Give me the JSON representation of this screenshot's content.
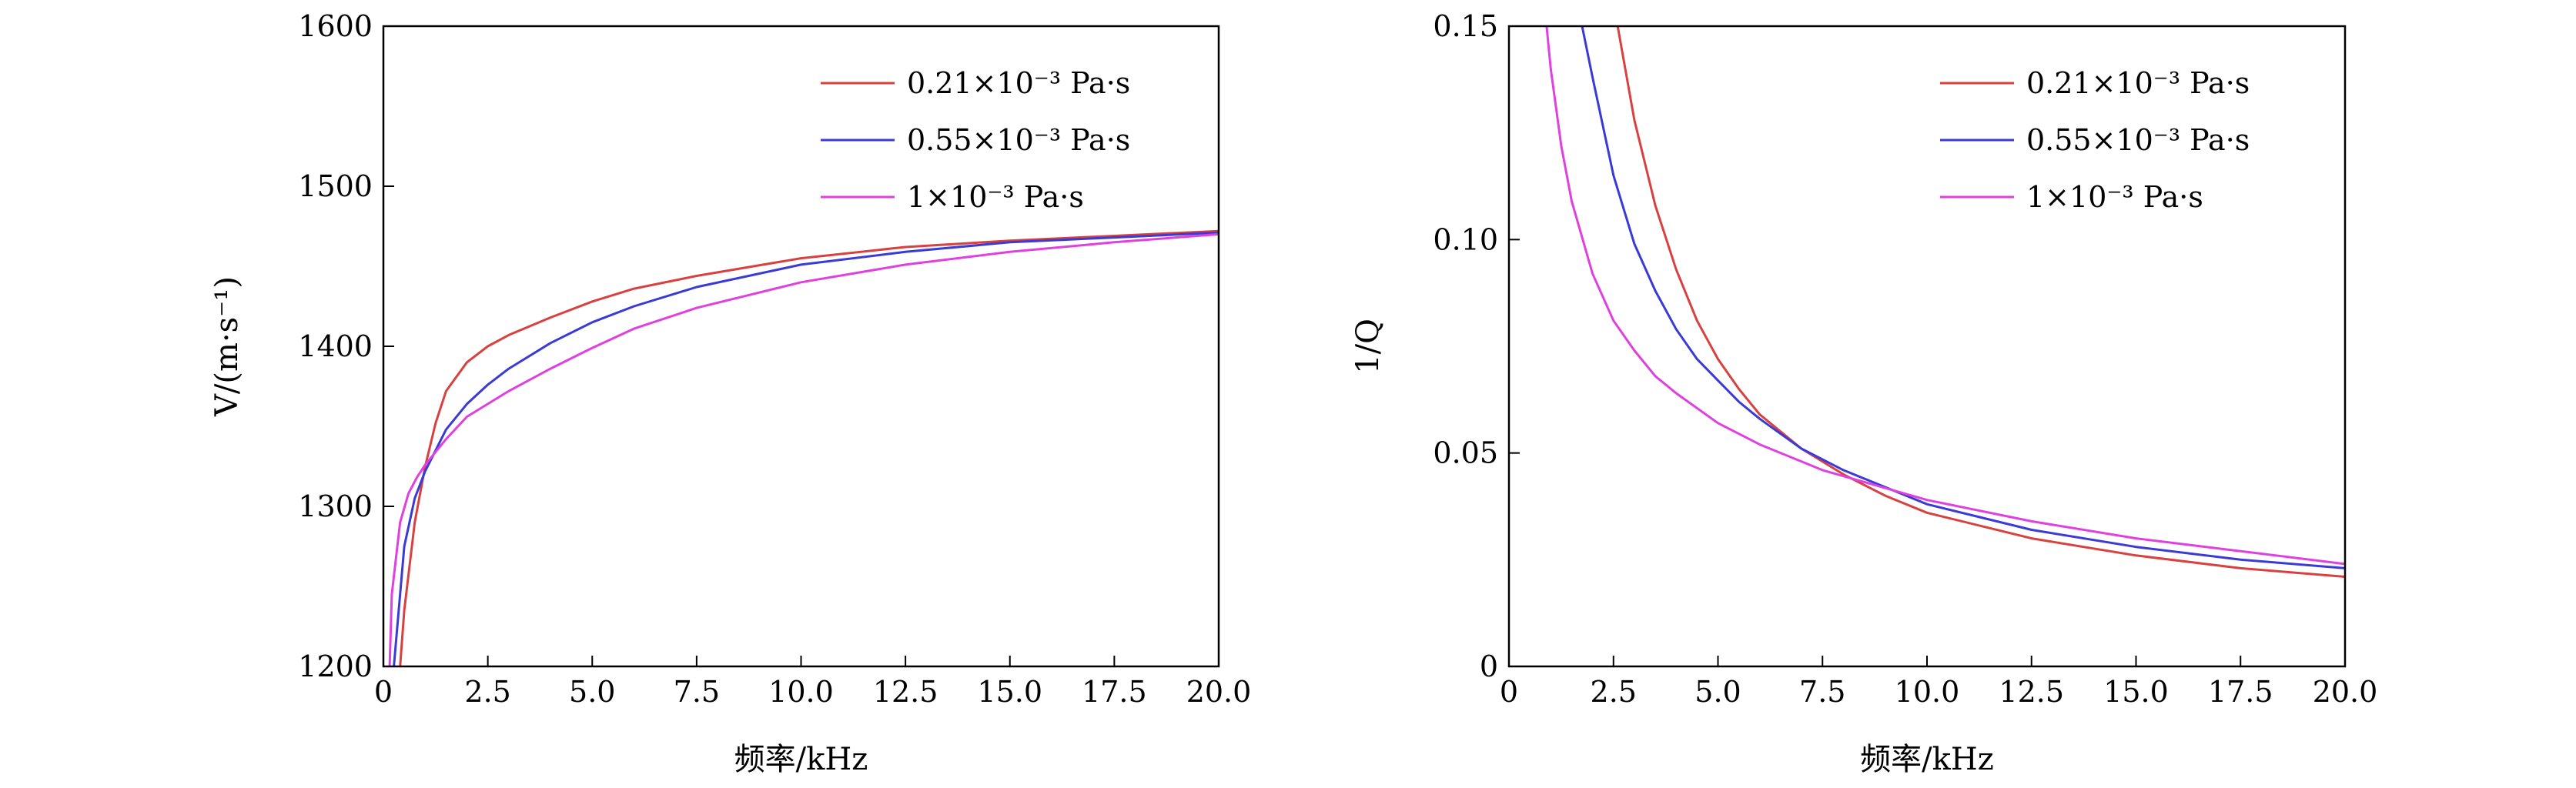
{
  "chart_data": [
    {
      "type": "line",
      "xlabel": "频率/kHz",
      "ylabel": "V/(m·s⁻¹)",
      "xlim": [
        0,
        20
      ],
      "ylim": [
        1200,
        1600
      ],
      "x_ticks": [
        "0",
        "2.5",
        "5.0",
        "7.5",
        "10.0",
        "12.5",
        "15.0",
        "17.5",
        "20.0"
      ],
      "y_ticks": [
        "1200",
        "1300",
        "1400",
        "1500",
        "1600"
      ],
      "grid": false,
      "legend_position": "top-right",
      "series": [
        {
          "name": "0.21×10⁻³ Pa·s",
          "color": "#d94040",
          "x": [
            0.4,
            0.5,
            0.75,
            1.0,
            1.25,
            1.5,
            2.0,
            2.5,
            3.0,
            4.0,
            5.0,
            6.0,
            7.5,
            10.0,
            12.5,
            15.0,
            17.5,
            20.0
          ],
          "y": [
            1200,
            1235,
            1290,
            1325,
            1352,
            1372,
            1390,
            1400,
            1407,
            1418,
            1428,
            1436,
            1444,
            1455,
            1462,
            1466,
            1469,
            1472
          ]
        },
        {
          "name": "0.55×10⁻³ Pa·s",
          "color": "#3a3ad6",
          "x": [
            0.25,
            0.3,
            0.5,
            0.75,
            1.0,
            1.5,
            2.0,
            2.5,
            3.0,
            4.0,
            5.0,
            6.0,
            7.5,
            10.0,
            12.5,
            15.0,
            17.5,
            20.0
          ],
          "y": [
            1200,
            1215,
            1275,
            1305,
            1322,
            1348,
            1364,
            1376,
            1386,
            1402,
            1415,
            1425,
            1437,
            1451,
            1459,
            1465,
            1468,
            1471
          ]
        },
        {
          "name": "1×10⁻³ Pa·s",
          "color": "#e040e0",
          "x": [
            0.15,
            0.2,
            0.4,
            0.6,
            0.8,
            1.0,
            1.5,
            2.0,
            2.5,
            3.0,
            4.0,
            5.0,
            6.0,
            7.5,
            10.0,
            12.5,
            15.0,
            17.5,
            20.0
          ],
          "y": [
            1200,
            1245,
            1290,
            1308,
            1318,
            1326,
            1342,
            1356,
            1364,
            1372,
            1386,
            1399,
            1411,
            1424,
            1440,
            1451,
            1459,
            1465,
            1470
          ]
        }
      ]
    },
    {
      "type": "line",
      "xlabel": "频率/kHz",
      "ylabel": "1/Q",
      "xlim": [
        0,
        20
      ],
      "ylim": [
        0,
        0.15
      ],
      "x_ticks": [
        "0",
        "2.5",
        "5.0",
        "7.5",
        "10.0",
        "12.5",
        "15.0",
        "17.5",
        "20.0"
      ],
      "y_ticks": [
        "0",
        "0.05",
        "0.10",
        "0.15"
      ],
      "grid": false,
      "legend_position": "top-right",
      "series": [
        {
          "name": "0.21×10⁻³ Pa·s",
          "color": "#d94040",
          "x": [
            2.6,
            3.0,
            3.5,
            4.0,
            4.5,
            5.0,
            5.5,
            6.0,
            7.0,
            8.0,
            9.0,
            10.0,
            12.5,
            15.0,
            17.5,
            20.0
          ],
          "y": [
            0.15,
            0.128,
            0.108,
            0.093,
            0.081,
            0.072,
            0.065,
            0.059,
            0.051,
            0.045,
            0.04,
            0.036,
            0.03,
            0.026,
            0.023,
            0.021
          ]
        },
        {
          "name": "0.55×10⁻³ Pa·s",
          "color": "#3a3ad6",
          "x": [
            1.75,
            2.0,
            2.5,
            3.0,
            3.5,
            4.0,
            4.5,
            5.0,
            5.5,
            6.0,
            7.0,
            8.0,
            9.0,
            10.0,
            12.5,
            15.0,
            17.5,
            20.0
          ],
          "y": [
            0.15,
            0.138,
            0.115,
            0.099,
            0.088,
            0.079,
            0.072,
            0.067,
            0.062,
            0.058,
            0.051,
            0.046,
            0.042,
            0.038,
            0.032,
            0.028,
            0.025,
            0.023
          ]
        },
        {
          "name": "1×10⁻³ Pa·s",
          "color": "#e040e0",
          "x": [
            0.9,
            1.0,
            1.25,
            1.5,
            2.0,
            2.5,
            3.0,
            3.5,
            4.0,
            5.0,
            6.0,
            7.5,
            10.0,
            12.5,
            15.0,
            17.5,
            20.0
          ],
          "y": [
            0.15,
            0.14,
            0.122,
            0.109,
            0.092,
            0.081,
            0.074,
            0.068,
            0.064,
            0.057,
            0.052,
            0.046,
            0.039,
            0.034,
            0.03,
            0.027,
            0.024
          ]
        }
      ]
    }
  ]
}
